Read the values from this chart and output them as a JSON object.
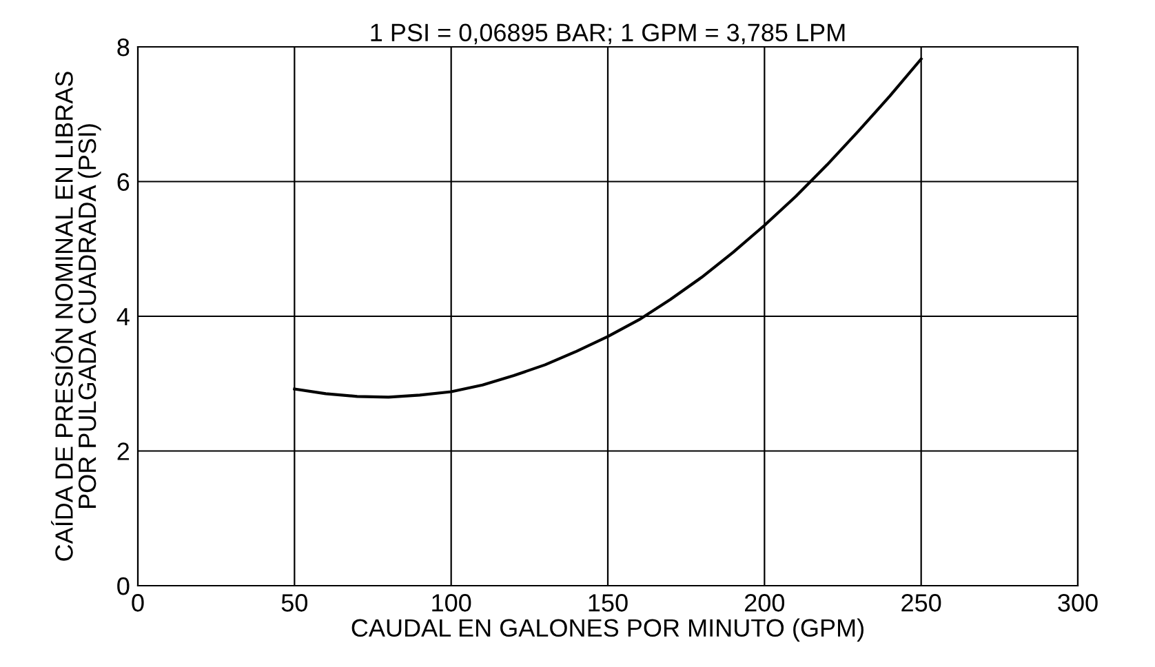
{
  "chart_data": {
    "type": "line",
    "title": "1 PSI = 0,06895 BAR; 1 GPM = 3,785 LPM",
    "xlabel": "CAUDAL EN GALONES POR MINUTO (GPM)",
    "ylabel": "CAÍDA DE PRESIÓN NOMINAL EN LIBRAS\nPOR PULGADA CUADRADA (PSI)",
    "x": [
      50,
      60,
      70,
      80,
      90,
      100,
      110,
      120,
      130,
      140,
      150,
      160,
      170,
      180,
      190,
      200,
      210,
      220,
      230,
      240,
      250
    ],
    "series": [
      {
        "color": "#000000",
        "values": [
          2.92,
          2.85,
          2.81,
          2.8,
          2.83,
          2.88,
          2.98,
          3.12,
          3.28,
          3.48,
          3.7,
          3.95,
          4.25,
          4.58,
          4.95,
          5.35,
          5.78,
          6.25,
          6.75,
          7.27,
          7.82
        ]
      }
    ],
    "xlim": [
      0,
      300
    ],
    "xticks": [
      0,
      50,
      100,
      150,
      200,
      250,
      300
    ],
    "ylim": [
      0,
      8
    ],
    "yticks": [
      0,
      2,
      4,
      6,
      8
    ],
    "grid": true,
    "line_style": "solid",
    "marker": "none"
  }
}
